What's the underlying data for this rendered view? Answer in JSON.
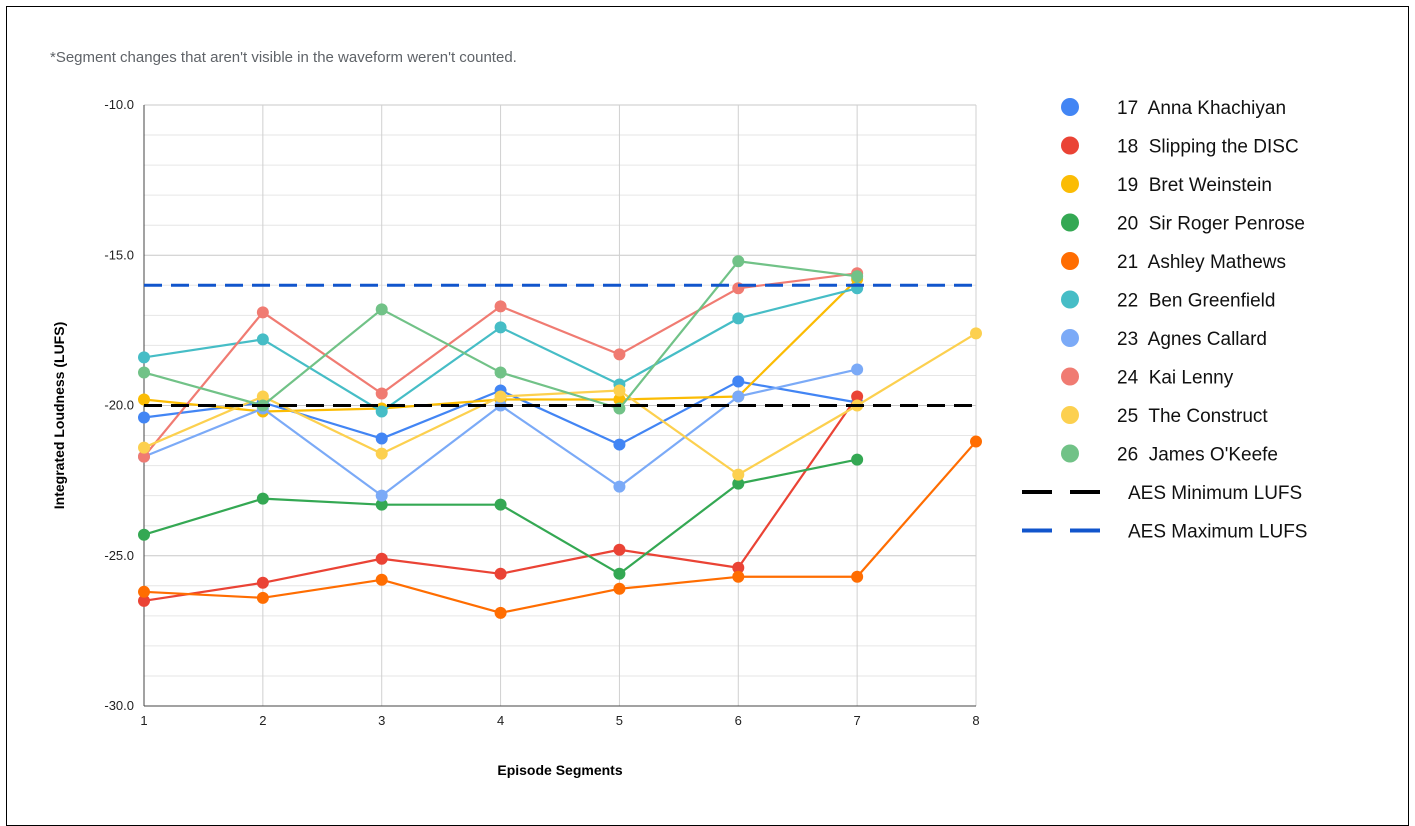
{
  "note": "*Segment changes that aren't visible in the waveform weren't counted.",
  "chart_data": {
    "type": "line",
    "xlabel": "Episode Segments",
    "ylabel": "Integrated Loudness (LUFS)",
    "xlim": [
      1,
      8
    ],
    "ylim": [
      -30,
      -10
    ],
    "x_ticks": [
      "1",
      "2",
      "3",
      "4",
      "5",
      "6",
      "7",
      "8"
    ],
    "y_ticks": [
      "-10.0",
      "-15.0",
      "-20.0",
      "-25.0",
      "-30.0"
    ],
    "grid": true,
    "legend_position": "right",
    "series": [
      {
        "name": "17  Anna Khachiyan",
        "color": "#4285f4",
        "x": [
          1,
          2,
          3,
          4,
          5,
          6,
          7
        ],
        "values": [
          -20.4,
          -19.9,
          -21.1,
          -19.5,
          -21.3,
          -19.2,
          -19.9
        ]
      },
      {
        "name": "18  Slipping the DISC",
        "color": "#ea4335",
        "x": [
          1,
          2,
          3,
          4,
          5,
          6,
          7
        ],
        "values": [
          -26.5,
          -25.9,
          -25.1,
          -25.6,
          -24.8,
          -25.4,
          -19.7
        ]
      },
      {
        "name": "19  Bret Weinstein",
        "color": "#fbbc04",
        "x": [
          1,
          2,
          3,
          4,
          5,
          6,
          7
        ],
        "values": [
          -19.8,
          -20.2,
          -20.1,
          -19.8,
          -19.8,
          -19.7,
          -15.8
        ]
      },
      {
        "name": "20  Sir Roger Penrose",
        "color": "#34a853",
        "x": [
          1,
          2,
          3,
          4,
          5,
          6,
          7
        ],
        "values": [
          -24.3,
          -23.1,
          -23.3,
          -23.3,
          -25.6,
          -22.6,
          -21.8
        ]
      },
      {
        "name": "21  Ashley Mathews",
        "color": "#ff6d01",
        "x": [
          1,
          2,
          3,
          4,
          5,
          6,
          7,
          8
        ],
        "values": [
          -26.2,
          -26.4,
          -25.8,
          -26.9,
          -26.1,
          -25.7,
          -25.7,
          -21.2
        ]
      },
      {
        "name": "22  Ben Greenfield",
        "color": "#46bdc6",
        "x": [
          1,
          2,
          3,
          4,
          5,
          6,
          7
        ],
        "values": [
          -18.4,
          -17.8,
          -20.2,
          -17.4,
          -19.3,
          -17.1,
          -16.1
        ]
      },
      {
        "name": "23  Agnes Callard",
        "color": "#7baaf7",
        "x": [
          1,
          2,
          3,
          4,
          5,
          6,
          7
        ],
        "values": [
          -21.7,
          -20.1,
          -23.0,
          -20.0,
          -22.7,
          -19.7,
          -18.8
        ]
      },
      {
        "name": "24  Kai Lenny",
        "color": "#f07b72",
        "x": [
          1,
          2,
          3,
          4,
          5,
          6,
          7
        ],
        "values": [
          -21.7,
          -16.9,
          -19.6,
          -16.7,
          -18.3,
          -16.1,
          -15.6
        ]
      },
      {
        "name": "25  The Construct",
        "color": "#fcd04f",
        "x": [
          1,
          2,
          3,
          4,
          5,
          6,
          7,
          8
        ],
        "values": [
          -21.4,
          -19.7,
          -21.6,
          -19.7,
          -19.5,
          -22.3,
          -20.0,
          -17.6
        ]
      },
      {
        "name": "26  James O'Keefe",
        "color": "#71c287",
        "x": [
          1,
          2,
          3,
          4,
          5,
          6,
          7
        ],
        "values": [
          -18.9,
          -20.0,
          -16.8,
          -18.9,
          -20.1,
          -15.2,
          -15.7
        ]
      }
    ],
    "reference_lines": [
      {
        "name": "AES Minimum LUFS",
        "color": "#000000",
        "value": -20.0,
        "style": "dashed"
      },
      {
        "name": "AES Maximum LUFS",
        "color": "#1155cc",
        "value": -16.0,
        "style": "dashed"
      }
    ]
  }
}
